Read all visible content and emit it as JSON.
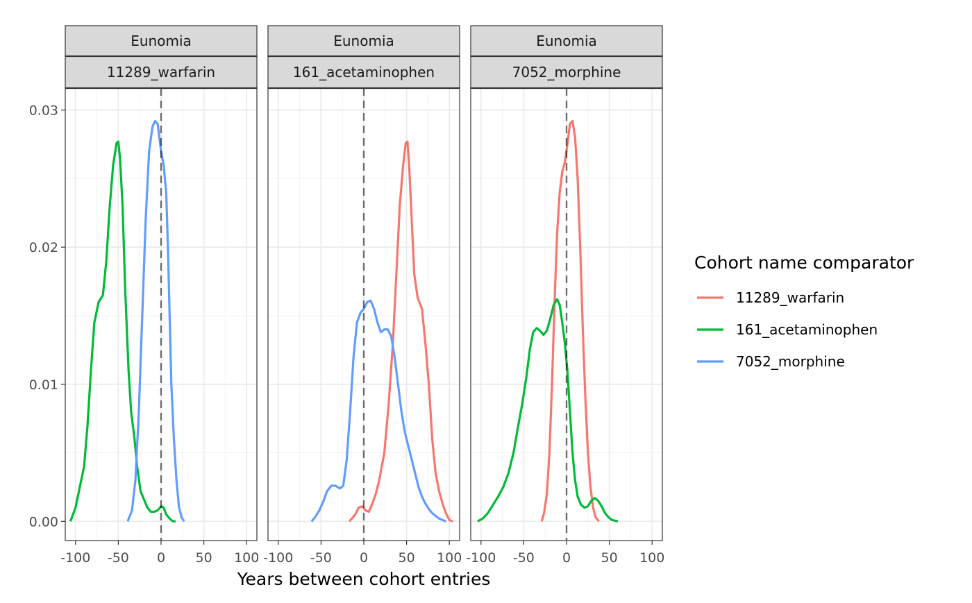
{
  "chart_data": {
    "type": "line",
    "xlabel": "Years between cohort entries",
    "ylabel": "",
    "xlim": [
      -112,
      112
    ],
    "ylim": [
      -0.0014,
      0.0316
    ],
    "x_ticks": [
      -100,
      -50,
      0,
      50,
      100
    ],
    "x_tick_labels": [
      "-100",
      "-50",
      "0",
      "50",
      "100"
    ],
    "y_ticks": [
      0.0,
      0.01,
      0.02,
      0.03
    ],
    "y_tick_labels": [
      "0.00",
      "0.01",
      "0.02",
      "0.03"
    ],
    "grid": true,
    "reference_line": {
      "x": 0,
      "style": "dashed"
    },
    "legend": {
      "title": "Cohort name comparator",
      "position": "right",
      "entries": [
        {
          "name": "11289_warfarin",
          "color": "#F8766D"
        },
        {
          "name": "161_acetaminophen",
          "color": "#00BA38"
        },
        {
          "name": "7052_morphine",
          "color": "#619CFF"
        }
      ]
    },
    "panels": [
      {
        "strip_top": "Eunomia",
        "strip_bottom": "11289_warfarin",
        "series": [
          {
            "name": "161_acetaminophen",
            "color": "#00BA38",
            "points": [
              [
                -106,
                0
              ],
              [
                -100,
                0.001
              ],
              [
                -95,
                0.0025
              ],
              [
                -90,
                0.004
              ],
              [
                -86,
                0.007
              ],
              [
                -82,
                0.011
              ],
              [
                -78,
                0.0145
              ],
              [
                -73,
                0.016
              ],
              [
                -68,
                0.0165
              ],
              [
                -64,
                0.019
              ],
              [
                -60,
                0.023
              ],
              [
                -56,
                0.026
              ],
              [
                -52,
                0.0276
              ],
              [
                -50,
                0.0277
              ],
              [
                -48,
                0.0265
              ],
              [
                -45,
                0.023
              ],
              [
                -42,
                0.017
              ],
              [
                -38,
                0.011
              ],
              [
                -35,
                0.008
              ],
              [
                -31,
                0.006
              ],
              [
                -28,
                0.004
              ],
              [
                -24,
                0.0022
              ],
              [
                -20,
                0.0016
              ],
              [
                -16,
                0.001
              ],
              [
                -12,
                0.0007
              ],
              [
                -8,
                0.0007
              ],
              [
                -4,
                0.0008
              ],
              [
                0,
                0.0011
              ],
              [
                3,
                0.001
              ],
              [
                6,
                0.0005
              ],
              [
                10,
                0.0002
              ],
              [
                14,
                0
              ],
              [
                17,
                0
              ]
            ]
          },
          {
            "name": "7052_morphine",
            "color": "#619CFF",
            "points": [
              [
                -39,
                0
              ],
              [
                -34,
                0.0008
              ],
              [
                -30,
                0.003
              ],
              [
                -26,
                0.008
              ],
              [
                -22,
                0.015
              ],
              [
                -18,
                0.022
              ],
              [
                -14,
                0.027
              ],
              [
                -10,
                0.0288
              ],
              [
                -7,
                0.0292
              ],
              [
                -4,
                0.029
              ],
              [
                0,
                0.027
              ],
              [
                3,
                0.026
              ],
              [
                6,
                0.024
              ],
              [
                8,
                0.02
              ],
              [
                10,
                0.015
              ],
              [
                12,
                0.01
              ],
              [
                15,
                0.006
              ],
              [
                18,
                0.003
              ],
              [
                21,
                0.001
              ],
              [
                24,
                0.0003
              ],
              [
                27,
                0
              ]
            ]
          }
        ]
      },
      {
        "strip_top": "Eunomia",
        "strip_bottom": "161_acetaminophen",
        "series": [
          {
            "name": "11289_warfarin",
            "color": "#F8766D",
            "points": [
              [
                -17,
                0
              ],
              [
                -14,
                0.0002
              ],
              [
                -10,
                0.0005
              ],
              [
                -6,
                0.001
              ],
              [
                -2,
                0.0011
              ],
              [
                2,
                0.0008
              ],
              [
                6,
                0.0007
              ],
              [
                10,
                0.0013
              ],
              [
                14,
                0.002
              ],
              [
                18,
                0.003
              ],
              [
                24,
                0.005
              ],
              [
                29,
                0.0085
              ],
              [
                34,
                0.013
              ],
              [
                38,
                0.018
              ],
              [
                42,
                0.023
              ],
              [
                46,
                0.026
              ],
              [
                49,
                0.0276
              ],
              [
                51,
                0.0277
              ],
              [
                53,
                0.026
              ],
              [
                56,
                0.022
              ],
              [
                59,
                0.018
              ],
              [
                63,
                0.0163
              ],
              [
                68,
                0.0155
              ],
              [
                72,
                0.013
              ],
              [
                76,
                0.01
              ],
              [
                80,
                0.006
              ],
              [
                84,
                0.0035
              ],
              [
                88,
                0.0022
              ],
              [
                92,
                0.0013
              ],
              [
                96,
                0.0006
              ],
              [
                100,
                0.0001
              ],
              [
                104,
                0
              ]
            ]
          },
          {
            "name": "7052_morphine",
            "color": "#619CFF",
            "points": [
              [
                -61,
                0
              ],
              [
                -57,
                0.0003
              ],
              [
                -52,
                0.0008
              ],
              [
                -47,
                0.0015
              ],
              [
                -43,
                0.0022
              ],
              [
                -38,
                0.0026
              ],
              [
                -33,
                0.0026
              ],
              [
                -28,
                0.0024
              ],
              [
                -24,
                0.0026
              ],
              [
                -20,
                0.0045
              ],
              [
                -16,
                0.008
              ],
              [
                -12,
                0.012
              ],
              [
                -8,
                0.0145
              ],
              [
                -4,
                0.0152
              ],
              [
                0,
                0.0155
              ],
              [
                4,
                0.016
              ],
              [
                8,
                0.0161
              ],
              [
                12,
                0.0155
              ],
              [
                16,
                0.0145
              ],
              [
                20,
                0.0138
              ],
              [
                24,
                0.014
              ],
              [
                28,
                0.014
              ],
              [
                32,
                0.0135
              ],
              [
                36,
                0.012
              ],
              [
                40,
                0.01
              ],
              [
                44,
                0.008
              ],
              [
                48,
                0.0065
              ],
              [
                52,
                0.0055
              ],
              [
                56,
                0.0045
              ],
              [
                60,
                0.0035
              ],
              [
                64,
                0.0025
              ],
              [
                68,
                0.0018
              ],
              [
                72,
                0.0013
              ],
              [
                76,
                0.0009
              ],
              [
                80,
                0.0006
              ],
              [
                84,
                0.0004
              ],
              [
                88,
                0.0002
              ],
              [
                92,
                0.0001
              ],
              [
                96,
                0
              ]
            ]
          }
        ]
      },
      {
        "strip_top": "Eunomia",
        "strip_bottom": "7052_morphine",
        "series": [
          {
            "name": "11289_warfarin",
            "color": "#F8766D",
            "points": [
              [
                -29,
                0
              ],
              [
                -26,
                0.0007
              ],
              [
                -23,
                0.002
              ],
              [
                -20,
                0.005
              ],
              [
                -17,
                0.01
              ],
              [
                -14,
                0.016
              ],
              [
                -11,
                0.021
              ],
              [
                -8,
                0.024
              ],
              [
                -5,
                0.0255
              ],
              [
                -2,
                0.0262
              ],
              [
                1,
                0.0275
              ],
              [
                4,
                0.029
              ],
              [
                7,
                0.0292
              ],
              [
                10,
                0.028
              ],
              [
                13,
                0.025
              ],
              [
                16,
                0.02
              ],
              [
                19,
                0.014
              ],
              [
                22,
                0.009
              ],
              [
                25,
                0.005
              ],
              [
                28,
                0.0025
              ],
              [
                31,
                0.001
              ],
              [
                34,
                0.0003
              ],
              [
                38,
                0
              ]
            ]
          },
          {
            "name": "161_acetaminophen",
            "color": "#00BA38",
            "points": [
              [
                -104,
                0
              ],
              [
                -98,
                0.0002
              ],
              [
                -92,
                0.0006
              ],
              [
                -86,
                0.0012
              ],
              [
                -80,
                0.0018
              ],
              [
                -74,
                0.0025
              ],
              [
                -68,
                0.0035
              ],
              [
                -62,
                0.005
              ],
              [
                -57,
                0.0068
              ],
              [
                -52,
                0.0085
              ],
              [
                -47,
                0.0105
              ],
              [
                -43,
                0.0125
              ],
              [
                -39,
                0.0138
              ],
              [
                -35,
                0.0141
              ],
              [
                -31,
                0.0139
              ],
              [
                -27,
                0.0136
              ],
              [
                -23,
                0.0139
              ],
              [
                -19,
                0.0148
              ],
              [
                -15,
                0.0158
              ],
              [
                -11,
                0.0162
              ],
              [
                -8,
                0.0158
              ],
              [
                -5,
                0.0145
              ],
              [
                -2,
                0.013
              ],
              [
                1,
                0.011
              ],
              [
                4,
                0.008
              ],
              [
                7,
                0.005
              ],
              [
                10,
                0.003
              ],
              [
                13,
                0.0018
              ],
              [
                17,
                0.0012
              ],
              [
                21,
                0.001
              ],
              [
                25,
                0.0011
              ],
              [
                29,
                0.0015
              ],
              [
                33,
                0.0017
              ],
              [
                37,
                0.0015
              ],
              [
                41,
                0.0011
              ],
              [
                45,
                0.0006
              ],
              [
                49,
                0.0003
              ],
              [
                53,
                0.0001
              ],
              [
                60,
                0
              ]
            ]
          }
        ]
      }
    ]
  }
}
